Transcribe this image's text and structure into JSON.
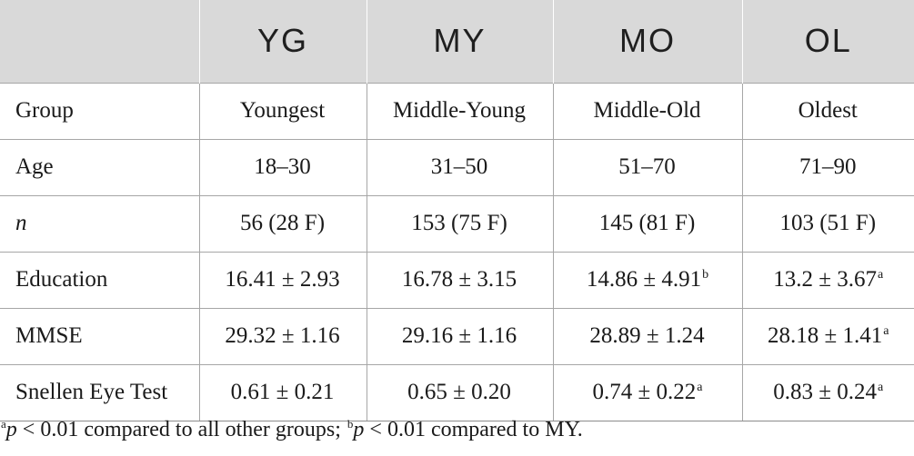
{
  "table": {
    "headers": [
      "",
      "YG",
      "MY",
      "MO",
      "OL"
    ],
    "rows": [
      {
        "label": "Group",
        "cells": [
          {
            "value": "Youngest",
            "sup": ""
          },
          {
            "value": "Middle-Young",
            "sup": ""
          },
          {
            "value": "Middle-Old",
            "sup": ""
          },
          {
            "value": "Oldest",
            "sup": ""
          }
        ]
      },
      {
        "label": "Age",
        "cells": [
          {
            "value": "18–30",
            "sup": ""
          },
          {
            "value": "31–50",
            "sup": ""
          },
          {
            "value": "51–70",
            "sup": ""
          },
          {
            "value": "71–90",
            "sup": ""
          }
        ]
      },
      {
        "label": "n",
        "cells": [
          {
            "value": "56 (28 F)",
            "sup": ""
          },
          {
            "value": "153 (75 F)",
            "sup": ""
          },
          {
            "value": "145 (81 F)",
            "sup": ""
          },
          {
            "value": "103 (51 F)",
            "sup": ""
          }
        ]
      },
      {
        "label": "Education",
        "cells": [
          {
            "value": "16.41 ± 2.93",
            "sup": ""
          },
          {
            "value": "16.78 ± 3.15",
            "sup": ""
          },
          {
            "value": "14.86 ± 4.91",
            "sup": "b"
          },
          {
            "value": "13.2 ± 3.67",
            "sup": "a"
          }
        ]
      },
      {
        "label": "MMSE",
        "cells": [
          {
            "value": "29.32 ± 1.16",
            "sup": ""
          },
          {
            "value": "29.16 ± 1.16",
            "sup": ""
          },
          {
            "value": "28.89 ± 1.24",
            "sup": ""
          },
          {
            "value": "28.18 ± 1.41",
            "sup": "a"
          }
        ]
      },
      {
        "label": "Snellen Eye Test",
        "cells": [
          {
            "value": "0.61 ± 0.21",
            "sup": ""
          },
          {
            "value": "0.65 ± 0.20",
            "sup": ""
          },
          {
            "value": "0.74 ± 0.22",
            "sup": "a"
          },
          {
            "value": "0.83 ± 0.24",
            "sup": "a"
          }
        ]
      }
    ]
  },
  "footnote": {
    "a_mark": "a",
    "a_p": "p",
    "a_text": " < 0.01 compared to all other groups; ",
    "b_mark": "b",
    "b_p": "p",
    "b_text": " < 0.01 compared to MY."
  }
}
